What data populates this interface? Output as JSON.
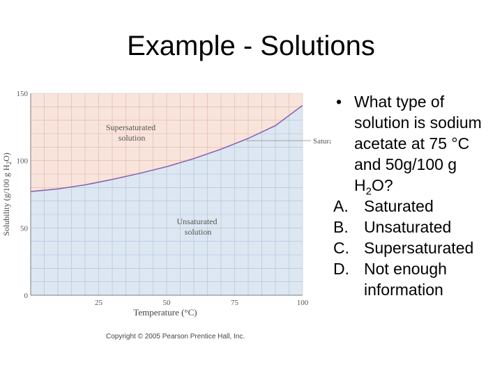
{
  "slide": {
    "title": "Example - Solutions"
  },
  "question": {
    "bullet": "•",
    "stem_before_sub": "What type of solution is sodium acetate at 75 °C  and 50g/100 g H",
    "stem_sub": "2",
    "stem_after_sub": "O?",
    "options": [
      {
        "letter": "A.",
        "text": "Saturated"
      },
      {
        "letter": "B.",
        "text": "Unsaturated"
      },
      {
        "letter": "C.",
        "text": "Supersaturated"
      },
      {
        "letter": "D.",
        "text": "Not enough information"
      }
    ]
  },
  "chart_data": {
    "type": "line",
    "xlabel": "Temperature (°C)",
    "ylabel": "Solubility (g/100 g H2O)",
    "ylabel_before_sub": "Solubility (g/100 g H",
    "ylabel_sub": "2",
    "ylabel_after_sub": "O)",
    "xlim": [
      0,
      100
    ],
    "ylim": [
      0,
      150
    ],
    "x_ticks": [
      25,
      50,
      75,
      100
    ],
    "y_ticks": [
      0,
      50,
      100,
      150
    ],
    "grid": true,
    "series": [
      {
        "name": "Saturated",
        "x": [
          0,
          10,
          20,
          30,
          40,
          50,
          60,
          70,
          80,
          90,
          100
        ],
        "y": [
          77,
          79,
          82,
          86,
          90.5,
          95.5,
          101.5,
          108.5,
          116.5,
          126,
          141
        ]
      }
    ],
    "regions": {
      "above": "Supersaturated solution",
      "above_lines": [
        "Supersaturated",
        "solution"
      ],
      "below": "Unsaturated solution",
      "below_lines": [
        "Unsaturated",
        "solution"
      ]
    },
    "copyright": "Copyright © 2005 Pearson Prentice Hall, Inc.",
    "colors": {
      "supersaturated_fill": "#f9e4dc",
      "unsaturated_fill": "#dde7f2",
      "curve": "#8a66b0",
      "grid_pink": "#dfb3a8",
      "grid_blue": "#aac0d8",
      "axis": "#7b7b7b"
    }
  }
}
